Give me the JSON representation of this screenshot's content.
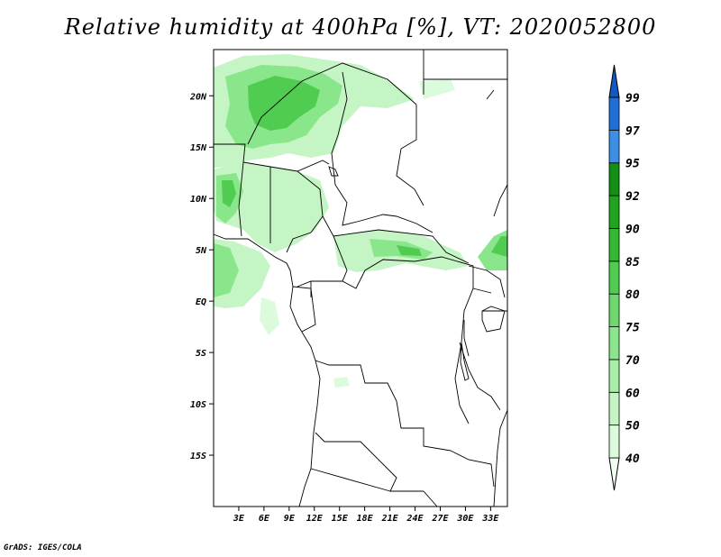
{
  "title": "Relative humidity at 400hPa [%], VT: 2020052800",
  "credit": "GrADS: IGES/COLA",
  "map": {
    "lat_ticks": [
      "20N",
      "15N",
      "10N",
      "5N",
      "EQ",
      "5S",
      "10S",
      "15S"
    ],
    "lat_values": [
      20,
      15,
      10,
      5,
      0,
      -5,
      -10,
      -15
    ],
    "lon_ticks": [
      "3E",
      "6E",
      "9E",
      "12E",
      "15E",
      "18E",
      "21E",
      "24E",
      "27E",
      "30E",
      "33E"
    ],
    "lon_values": [
      3,
      6,
      9,
      12,
      15,
      18,
      21,
      24,
      27,
      30,
      33
    ],
    "lon_range": [
      0,
      35
    ],
    "lat_range": [
      -20,
      24.5
    ]
  },
  "colorbar": {
    "labels": [
      "40",
      "50",
      "60",
      "70",
      "75",
      "80",
      "85",
      "90",
      "92",
      "95",
      "97",
      "99"
    ],
    "colors": [
      "#effff0",
      "#dcfadc",
      "#c5f5c5",
      "#a7eea7",
      "#8ae68a",
      "#6ed86e",
      "#50cc50",
      "#34b834",
      "#1ea41e",
      "#138f13",
      "#3c8fe6",
      "#1e6fd8",
      "#1458c0"
    ]
  }
}
